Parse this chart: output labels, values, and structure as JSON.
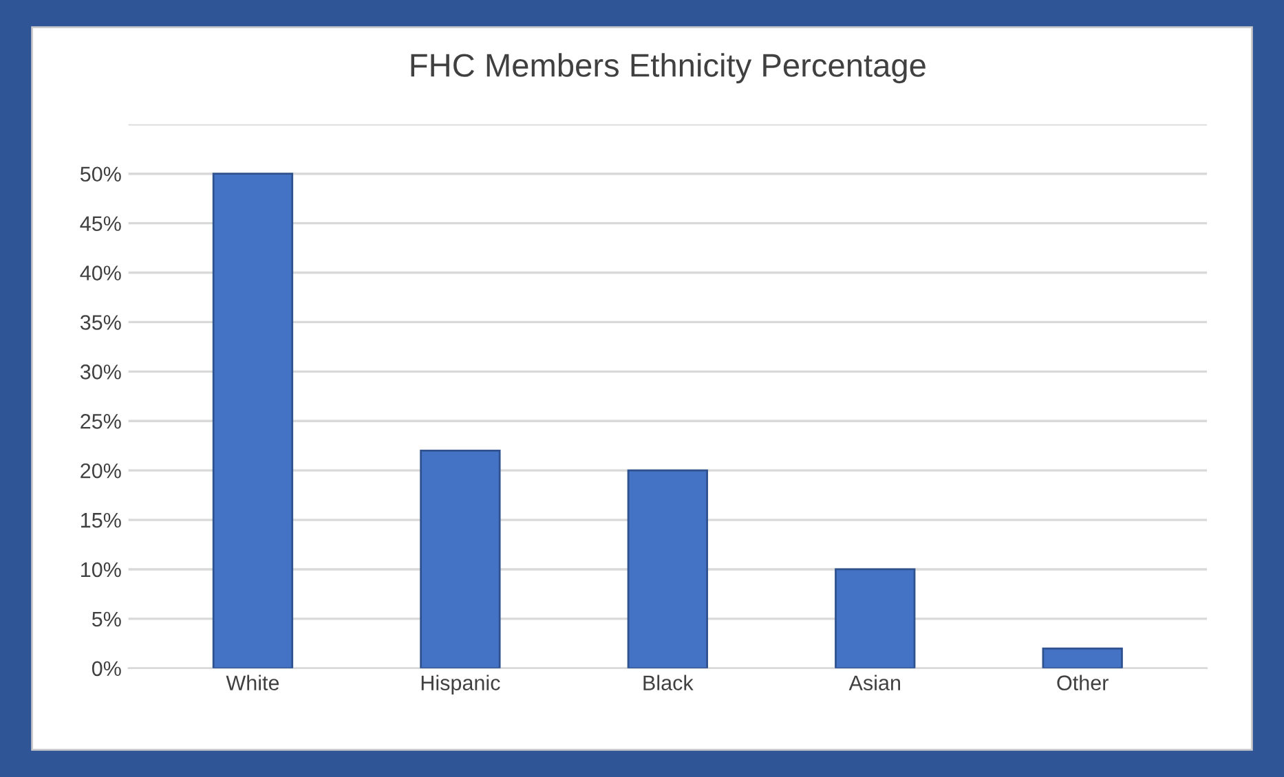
{
  "chart_data": {
    "type": "bar",
    "title": "FHC Members Ethnicity Percentage",
    "categories": [
      "White",
      "Hispanic",
      "Black",
      "Asian",
      "Other"
    ],
    "values": [
      50,
      22,
      20,
      10,
      2
    ],
    "color": "#4472c4",
    "ylim": [
      0,
      55
    ],
    "yticks": [
      {
        "value": 0,
        "label": "0%"
      },
      {
        "value": 5,
        "label": "5%"
      },
      {
        "value": 10,
        "label": "10%"
      },
      {
        "value": 15,
        "label": "15%"
      },
      {
        "value": 20,
        "label": "20%"
      },
      {
        "value": 25,
        "label": "25%"
      },
      {
        "value": 30,
        "label": "30%"
      },
      {
        "value": 35,
        "label": "35%"
      },
      {
        "value": 40,
        "label": "40%"
      },
      {
        "value": 45,
        "label": "45%"
      },
      {
        "value": 50,
        "label": "50%"
      },
      {
        "value": 55,
        "label": null
      }
    ],
    "grid": "y",
    "legend": false
  }
}
